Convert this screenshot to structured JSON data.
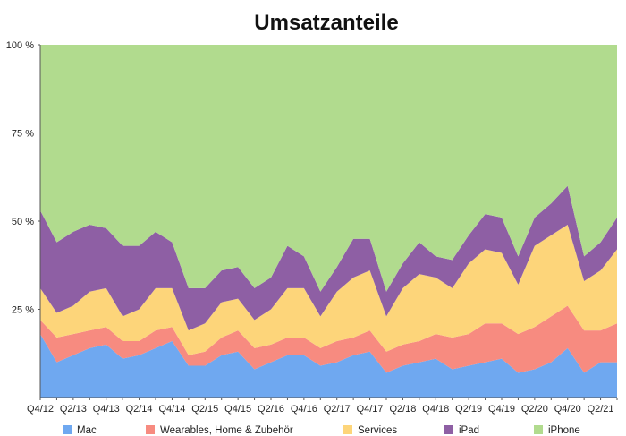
{
  "chart_data": {
    "type": "area",
    "stacked": true,
    "title": "Umsatzanteile",
    "xlabel": "",
    "ylabel": "",
    "ylim": [
      0,
      100
    ],
    "yticks": [
      "100 %",
      "75 %",
      "50 %",
      "25 %"
    ],
    "ytick_values": [
      100,
      75,
      50,
      25
    ],
    "grid": false,
    "legend_position": "bottom",
    "x": [
      "Q4/12",
      "Q1/13",
      "Q2/13",
      "Q3/13",
      "Q4/13",
      "Q1/14",
      "Q2/14",
      "Q3/14",
      "Q4/14",
      "Q1/15",
      "Q2/15",
      "Q3/15",
      "Q4/15",
      "Q1/16",
      "Q2/16",
      "Q3/16",
      "Q4/16",
      "Q1/17",
      "Q2/17",
      "Q3/17",
      "Q4/17",
      "Q1/18",
      "Q2/18",
      "Q3/18",
      "Q4/18",
      "Q1/19",
      "Q2/19",
      "Q3/19",
      "Q4/19",
      "Q1/20",
      "Q2/20",
      "Q3/20",
      "Q4/20",
      "Q1/21",
      "Q2/21",
      "Q3/21"
    ],
    "x_tick_labels": [
      "Q4/12",
      "Q2/13",
      "Q4/13",
      "Q2/14",
      "Q4/14",
      "Q2/15",
      "Q4/15",
      "Q2/16",
      "Q4/16",
      "Q2/17",
      "Q4/17",
      "Q2/18",
      "Q4/18",
      "Q2/19",
      "Q4/19",
      "Q2/20",
      "Q4/20",
      "Q2/21"
    ],
    "series": [
      {
        "name": "Mac",
        "color": "#6fa8f0",
        "values": [
          18,
          10,
          12,
          14,
          15,
          11,
          12,
          14,
          16,
          9,
          9,
          12,
          13,
          8,
          10,
          12,
          12,
          9,
          10,
          12,
          13,
          7,
          9,
          10,
          11,
          8,
          9,
          10,
          11,
          7,
          8,
          10,
          14,
          7,
          10,
          10
        ]
      },
      {
        "name": "Wearables, Home & Zubehör",
        "color": "#f78b80",
        "values": [
          4,
          7,
          6,
          5,
          5,
          5,
          4,
          5,
          4,
          3,
          4,
          5,
          6,
          6,
          5,
          5,
          5,
          5,
          6,
          5,
          6,
          6,
          6,
          6,
          7,
          9,
          9,
          11,
          10,
          11,
          12,
          13,
          12,
          12,
          9,
          11
        ]
      },
      {
        "name": "Services",
        "color": "#fdd57a",
        "values": [
          9,
          7,
          8,
          11,
          11,
          7,
          9,
          12,
          11,
          7,
          8,
          10,
          9,
          8,
          10,
          14,
          14,
          9,
          14,
          17,
          17,
          10,
          16,
          19,
          16,
          14,
          20,
          21,
          20,
          14,
          23,
          23,
          23,
          14,
          17,
          21
        ]
      },
      {
        "name": "iPad",
        "color": "#8e5fa4",
        "values": [
          22,
          20,
          21,
          19,
          17,
          20,
          18,
          16,
          13,
          12,
          10,
          9,
          9,
          9,
          9,
          12,
          9,
          7,
          7,
          11,
          9,
          7,
          7,
          9,
          6,
          8,
          8,
          10,
          10,
          8,
          8,
          9,
          11,
          7,
          8,
          9
        ]
      },
      {
        "name": "iPhone",
        "color": "#b1db8e",
        "values": [
          47,
          56,
          53,
          51,
          52,
          57,
          57,
          53,
          56,
          69,
          69,
          64,
          63,
          69,
          66,
          57,
          60,
          70,
          63,
          55,
          55,
          70,
          62,
          56,
          60,
          61,
          54,
          48,
          49,
          60,
          49,
          45,
          40,
          60,
          56,
          49
        ]
      }
    ]
  }
}
